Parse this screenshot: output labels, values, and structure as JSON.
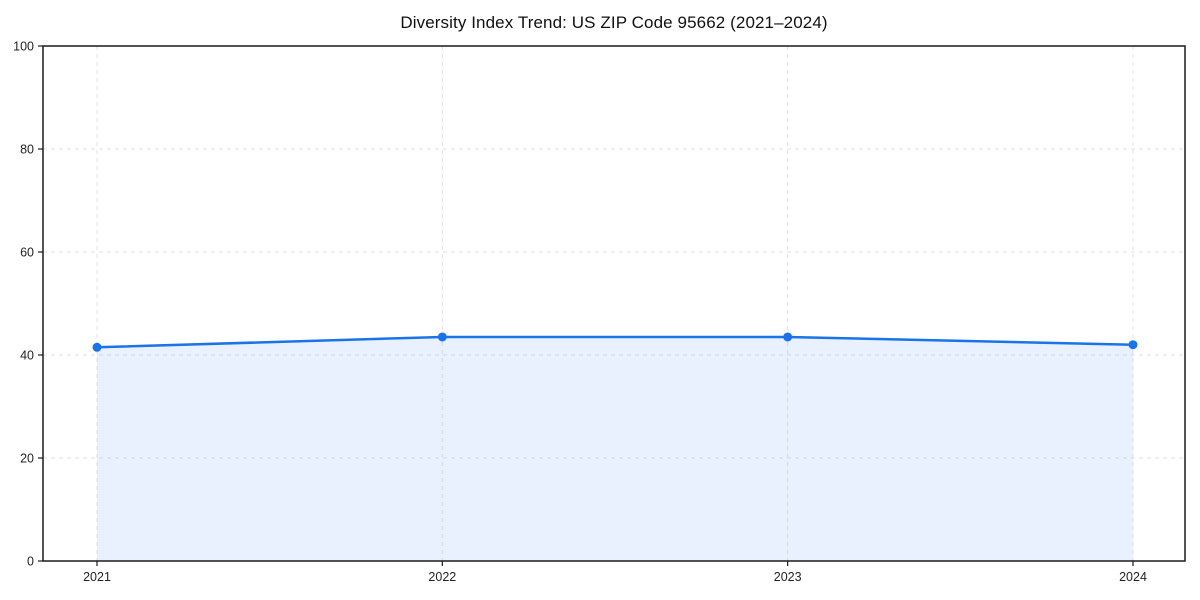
{
  "title": "Diversity Index Trend: US ZIP Code 95662 (2021–2024)",
  "chart_data": {
    "type": "area",
    "title": "Diversity Index Trend: US ZIP Code 95662 (2021–2024)",
    "categories": [
      "2021",
      "2022",
      "2023",
      "2024"
    ],
    "series": [
      {
        "name": "Diversity Index",
        "values": [
          41.5,
          43.5,
          43.5,
          42.0
        ]
      }
    ],
    "xlabel": "",
    "ylabel": "",
    "ylim": [
      0,
      100
    ],
    "yticks": [
      0,
      20,
      40,
      60,
      80,
      100
    ],
    "grid": true,
    "grid_style": "dashed",
    "legend_position": "none",
    "colors": {
      "line": "#1a73e8",
      "marker": "#1a73e8",
      "fill": "#1a73e8",
      "fill_opacity": "0.10",
      "grid": "#e2e2e2",
      "axis": "#1a1a1a",
      "tick_text": "#222222"
    }
  }
}
